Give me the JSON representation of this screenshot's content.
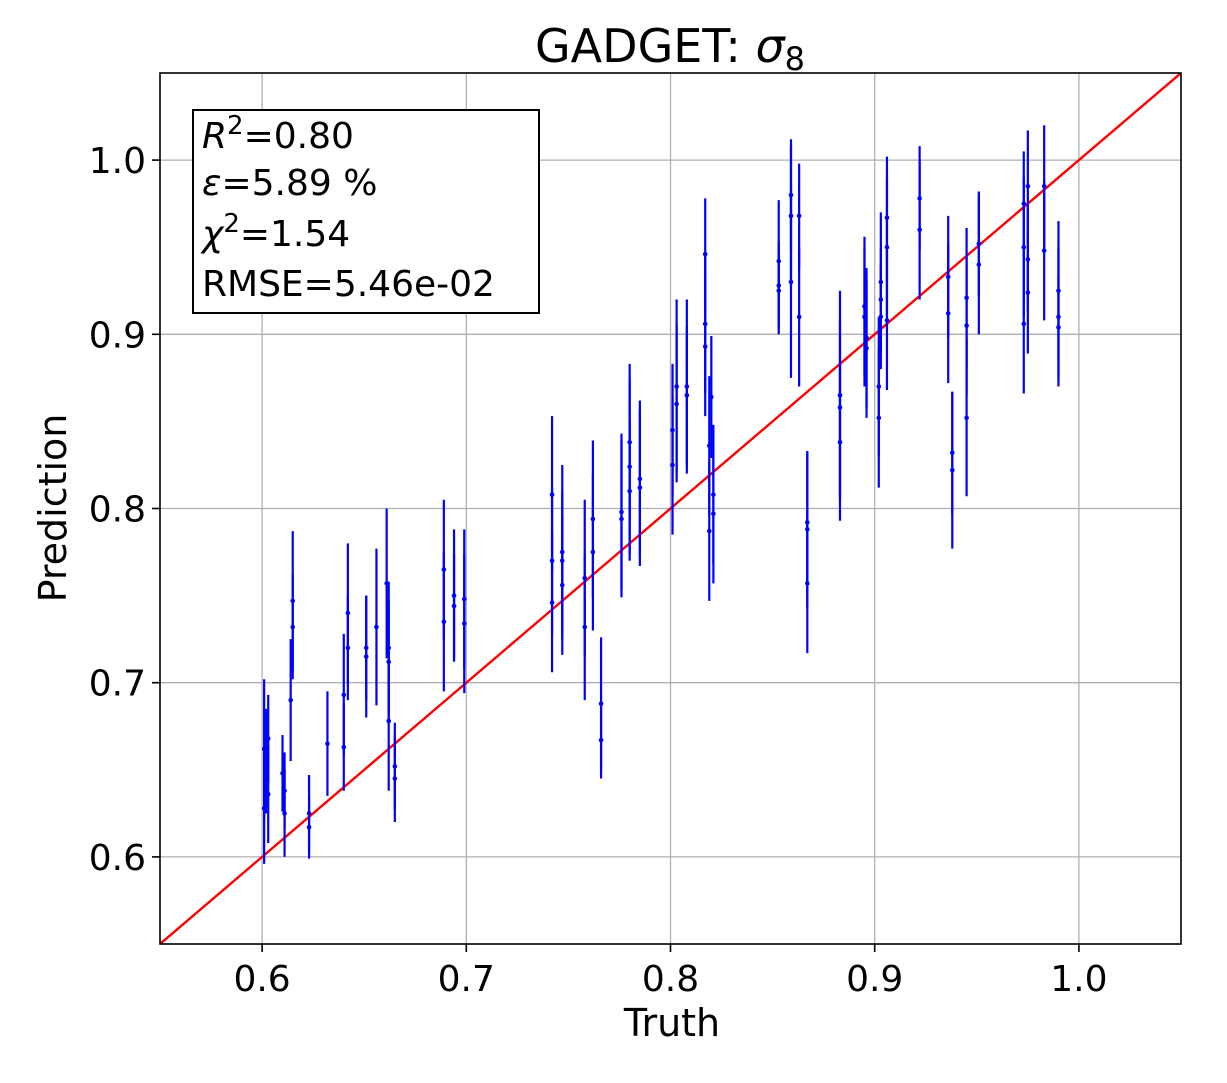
{
  "chart_data": {
    "type": "scatter",
    "title_main": "GADGET: ",
    "title_symbol": "σ",
    "title_subscript": "8",
    "xlabel": "Truth",
    "ylabel": "Prediction",
    "xlim": [
      0.55,
      1.05
    ],
    "ylim": [
      0.55,
      1.05
    ],
    "x_ticks": [
      0.6,
      0.7,
      0.8,
      0.9,
      1.0
    ],
    "x_tick_labels": [
      "0.6",
      "0.7",
      "0.8",
      "0.9",
      "1.0"
    ],
    "y_ticks": [
      0.6,
      0.7,
      0.8,
      0.9,
      1.0
    ],
    "y_tick_labels": [
      "0.6",
      "0.7",
      "0.8",
      "0.9",
      "1.0"
    ],
    "grid": true,
    "stats": {
      "r2_symbol": "R",
      "r2_sup": "2",
      "r2_value": "=0.80",
      "eps_symbol": "ε",
      "eps_value": "=5.89 %",
      "chi2_symbol": "χ",
      "chi2_sup": "2",
      "chi2_value": "=1.54",
      "rmse_text": "RMSE=5.46e-02"
    },
    "reference_line": {
      "from": [
        0.55,
        0.55
      ],
      "to": [
        1.05,
        1.05
      ],
      "color": "#ff0000"
    },
    "point_color": "#0000ff",
    "points": [
      [
        0.601,
        0.662,
        0.04
      ],
      [
        0.601,
        0.628,
        0.032
      ],
      [
        0.602,
        0.655,
        0.03
      ],
      [
        0.603,
        0.668,
        0.025
      ],
      [
        0.603,
        0.636,
        0.028
      ],
      [
        0.61,
        0.648,
        0.022
      ],
      [
        0.611,
        0.638,
        0.022
      ],
      [
        0.611,
        0.625,
        0.025
      ],
      [
        0.614,
        0.69,
        0.035
      ],
      [
        0.615,
        0.747,
        0.04
      ],
      [
        0.615,
        0.732,
        0.03
      ],
      [
        0.623,
        0.625,
        0.022
      ],
      [
        0.623,
        0.617,
        0.018
      ],
      [
        0.632,
        0.665,
        0.03
      ],
      [
        0.64,
        0.663,
        0.025
      ],
      [
        0.64,
        0.693,
        0.035
      ],
      [
        0.642,
        0.74,
        0.04
      ],
      [
        0.642,
        0.72,
        0.03
      ],
      [
        0.651,
        0.72,
        0.03
      ],
      [
        0.651,
        0.715,
        0.035
      ],
      [
        0.656,
        0.732,
        0.045
      ],
      [
        0.661,
        0.757,
        0.043
      ],
      [
        0.662,
        0.72,
        0.038
      ],
      [
        0.662,
        0.712,
        0.035
      ],
      [
        0.662,
        0.678,
        0.04
      ],
      [
        0.665,
        0.652,
        0.025
      ],
      [
        0.665,
        0.645,
        0.025
      ],
      [
        0.689,
        0.765,
        0.04
      ],
      [
        0.689,
        0.735,
        0.04
      ],
      [
        0.694,
        0.75,
        0.038
      ],
      [
        0.694,
        0.744,
        0.03
      ],
      [
        0.699,
        0.748,
        0.04
      ],
      [
        0.699,
        0.734,
        0.04
      ],
      [
        0.742,
        0.808,
        0.045
      ],
      [
        0.742,
        0.77,
        0.042
      ],
      [
        0.742,
        0.746,
        0.04
      ],
      [
        0.747,
        0.775,
        0.05
      ],
      [
        0.747,
        0.77,
        0.04
      ],
      [
        0.747,
        0.756,
        0.04
      ],
      [
        0.758,
        0.76,
        0.045
      ],
      [
        0.758,
        0.732,
        0.042
      ],
      [
        0.762,
        0.794,
        0.045
      ],
      [
        0.762,
        0.775,
        0.045
      ],
      [
        0.766,
        0.688,
        0.038
      ],
      [
        0.766,
        0.667,
        0.022
      ],
      [
        0.776,
        0.798,
        0.045
      ],
      [
        0.776,
        0.794,
        0.045
      ],
      [
        0.78,
        0.838,
        0.045
      ],
      [
        0.78,
        0.824,
        0.05
      ],
      [
        0.78,
        0.81,
        0.04
      ],
      [
        0.785,
        0.817,
        0.045
      ],
      [
        0.785,
        0.812,
        0.045
      ],
      [
        0.801,
        0.845,
        0.038
      ],
      [
        0.801,
        0.825,
        0.04
      ],
      [
        0.803,
        0.87,
        0.05
      ],
      [
        0.803,
        0.86,
        0.045
      ],
      [
        0.808,
        0.87,
        0.05
      ],
      [
        0.808,
        0.865,
        0.04
      ],
      [
        0.817,
        0.946,
        0.032
      ],
      [
        0.817,
        0.906,
        0.04
      ],
      [
        0.817,
        0.893,
        0.04
      ],
      [
        0.819,
        0.836,
        0.04
      ],
      [
        0.819,
        0.787,
        0.04
      ],
      [
        0.82,
        0.864,
        0.035
      ],
      [
        0.821,
        0.808,
        0.04
      ],
      [
        0.821,
        0.797,
        0.04
      ],
      [
        0.853,
        0.942,
        0.035
      ],
      [
        0.853,
        0.928,
        0.025
      ],
      [
        0.853,
        0.925,
        0.025
      ],
      [
        0.859,
        0.98,
        0.032
      ],
      [
        0.859,
        0.968,
        0.04
      ],
      [
        0.859,
        0.93,
        0.055
      ],
      [
        0.863,
        0.968,
        0.03
      ],
      [
        0.863,
        0.91,
        0.04
      ],
      [
        0.867,
        0.792,
        0.04
      ],
      [
        0.867,
        0.788,
        0.045
      ],
      [
        0.867,
        0.757,
        0.04
      ],
      [
        0.883,
        0.865,
        0.06
      ],
      [
        0.883,
        0.858,
        0.05
      ],
      [
        0.883,
        0.838,
        0.045
      ],
      [
        0.895,
        0.916,
        0.04
      ],
      [
        0.895,
        0.91,
        0.04
      ],
      [
        0.896,
        0.898,
        0.04
      ],
      [
        0.896,
        0.892,
        0.04
      ],
      [
        0.902,
        0.87,
        0.04
      ],
      [
        0.902,
        0.852,
        0.04
      ],
      [
        0.903,
        0.93,
        0.04
      ],
      [
        0.903,
        0.92,
        0.03
      ],
      [
        0.903,
        0.91,
        0.03
      ],
      [
        0.906,
        0.967,
        0.035
      ],
      [
        0.906,
        0.95,
        0.04
      ],
      [
        0.906,
        0.908,
        0.04
      ],
      [
        0.922,
        0.978,
        0.03
      ],
      [
        0.922,
        0.96,
        0.04
      ],
      [
        0.936,
        0.933,
        0.035
      ],
      [
        0.936,
        0.912,
        0.04
      ],
      [
        0.938,
        0.832,
        0.035
      ],
      [
        0.938,
        0.822,
        0.045
      ],
      [
        0.945,
        0.921,
        0.04
      ],
      [
        0.945,
        0.905,
        0.04
      ],
      [
        0.945,
        0.852,
        0.045
      ],
      [
        0.951,
        0.952,
        0.03
      ],
      [
        0.951,
        0.94,
        0.04
      ],
      [
        0.973,
        0.975,
        0.03
      ],
      [
        0.973,
        0.95,
        0.04
      ],
      [
        0.973,
        0.906,
        0.04
      ],
      [
        0.975,
        0.985,
        0.032
      ],
      [
        0.975,
        0.943,
        0.03
      ],
      [
        0.975,
        0.924,
        0.035
      ],
      [
        0.983,
        0.985,
        0.035
      ],
      [
        0.983,
        0.948,
        0.04
      ],
      [
        0.99,
        0.925,
        0.04
      ],
      [
        0.99,
        0.91,
        0.04
      ],
      [
        0.99,
        0.904,
        0.03
      ]
    ]
  }
}
